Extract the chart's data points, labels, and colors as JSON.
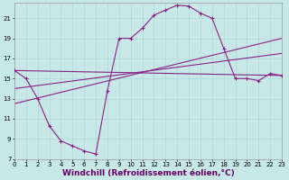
{
  "background_color": "#c8e8e8",
  "grid_color": "#b0d8d8",
  "line_color": "#882288",
  "xlabel": "Windchill (Refroidissement éolien,°C)",
  "xlabel_fontsize": 6.5,
  "xlim": [
    0,
    23
  ],
  "ylim": [
    7,
    22.5
  ],
  "yticks": [
    7,
    9,
    11,
    13,
    15,
    17,
    19,
    21
  ],
  "xticks": [
    0,
    1,
    2,
    3,
    4,
    5,
    6,
    7,
    8,
    9,
    10,
    11,
    12,
    13,
    14,
    15,
    16,
    17,
    18,
    19,
    20,
    21,
    22,
    23
  ],
  "series_main": {
    "x": [
      0,
      1,
      2,
      3,
      4,
      5,
      6,
      7,
      8,
      9,
      10,
      11,
      12,
      13,
      14,
      15,
      16,
      17,
      18,
      19,
      20,
      21,
      22,
      23
    ],
    "y": [
      15.8,
      15.0,
      13.0,
      10.3,
      8.8,
      8.3,
      7.8,
      7.5,
      13.8,
      19.0,
      19.0,
      20.0,
      21.3,
      21.8,
      22.3,
      22.2,
      21.5,
      21.0,
      18.0,
      15.0,
      15.0,
      14.8,
      15.5,
      15.3
    ]
  },
  "diag_lines": [
    {
      "x": [
        0,
        23
      ],
      "y": [
        15.8,
        15.3
      ]
    },
    {
      "x": [
        0,
        23
      ],
      "y": [
        14.0,
        17.5
      ]
    },
    {
      "x": [
        0,
        23
      ],
      "y": [
        12.5,
        19.0
      ]
    }
  ]
}
